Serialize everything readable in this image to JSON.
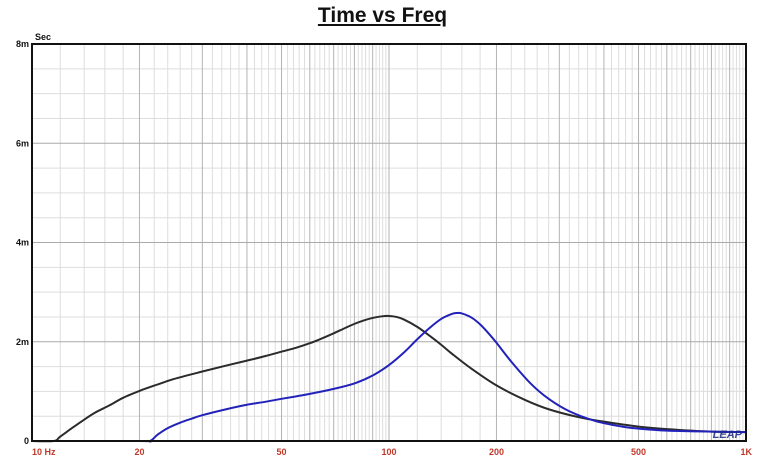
{
  "chart_data": {
    "type": "line",
    "title": "Time vs Freq",
    "ylabel": "Sec",
    "xscale": "log",
    "xlim": [
      10,
      1000
    ],
    "ylim": [
      0,
      0.008
    ],
    "x_ticks": [
      {
        "value": 10,
        "label": "10 Hz"
      },
      {
        "value": 20,
        "label": "20"
      },
      {
        "value": 50,
        "label": "50"
      },
      {
        "value": 100,
        "label": "100"
      },
      {
        "value": 200,
        "label": "200"
      },
      {
        "value": 500,
        "label": "500"
      },
      {
        "value": 1000,
        "label": "1K"
      }
    ],
    "y_ticks": [
      {
        "value": 0,
        "label": "0"
      },
      {
        "value": 0.002,
        "label": "2m"
      },
      {
        "value": 0.004,
        "label": "4m"
      },
      {
        "value": 0.006,
        "label": "6m"
      },
      {
        "value": 0.008,
        "label": "8m"
      }
    ],
    "grid": true,
    "series": [
      {
        "color": "#2b2b2b",
        "x": [
          10.0,
          11.5,
          12.0,
          13.0,
          14.0,
          15.0,
          16.5,
          18.0,
          20.0,
          22.5,
          25.0,
          30.0,
          35.0,
          40.0,
          45.0,
          50.0,
          55.0,
          60.0,
          65.0,
          70.0,
          75.0,
          80.0,
          85.0,
          90.0,
          95.0,
          100.0,
          105.0,
          110.0,
          120.0,
          130.0,
          140.0,
          150.0,
          170.0,
          200.0,
          240.0,
          280.0,
          340.0,
          400.0,
          500.0,
          600.0,
          800.0,
          1000.0
        ],
        "y": [
          0.0,
          0.0,
          9e-05,
          0.00027,
          0.00043,
          0.00057,
          0.00072,
          0.00087,
          0.00101,
          0.00114,
          0.00125,
          0.0014,
          0.00152,
          0.00162,
          0.00171,
          0.0018,
          0.00188,
          0.00197,
          0.00207,
          0.00217,
          0.00227,
          0.00236,
          0.00243,
          0.00248,
          0.00251,
          0.00252,
          0.0025,
          0.00245,
          0.0023,
          0.00212,
          0.00194,
          0.00176,
          0.00146,
          0.00112,
          0.00083,
          0.00064,
          0.00048,
          0.00039,
          0.00029,
          0.00024,
          0.00019,
          0.00018
        ]
      },
      {
        "color": "#2222bb",
        "x": [
          10.0,
          20.0,
          21.4,
          22.5,
          24.0,
          26.0,
          28.0,
          30.0,
          35.0,
          40.0,
          45.0,
          50.0,
          55.0,
          60.0,
          70.0,
          80.0,
          90.0,
          100.0,
          110.0,
          120.0,
          130.0,
          140.0,
          150.0,
          155.0,
          160.0,
          170.0,
          180.0,
          190.0,
          200.0,
          220.0,
          250.0,
          280.0,
          320.0,
          380.0,
          450.0,
          500.0,
          600.0,
          800.0,
          1000.0
        ],
        "y": [
          0.0,
          0.0,
          0.0,
          0.00013,
          0.00026,
          0.00037,
          0.00045,
          0.00052,
          0.00064,
          0.00073,
          0.00079,
          0.00085,
          0.0009,
          0.00095,
          0.00105,
          0.00116,
          0.00132,
          0.00153,
          0.00178,
          0.00205,
          0.00228,
          0.00246,
          0.00256,
          0.00258,
          0.00257,
          0.00249,
          0.00235,
          0.00217,
          0.00198,
          0.0016,
          0.00115,
          0.00085,
          0.0006,
          0.0004,
          0.00029,
          0.00025,
          0.00021,
          0.00019,
          0.00018
        ]
      }
    ]
  },
  "logo_text": "LEAP"
}
